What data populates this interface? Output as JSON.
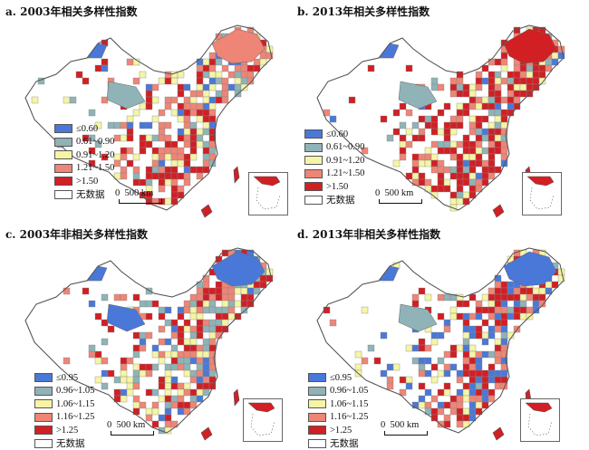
{
  "panels": [
    {
      "title": "a. 2003年相关多样性指数",
      "legend": [
        {
          "label": "≤0.60",
          "color": "#4a78d8"
        },
        {
          "label": "0.61~0.90",
          "color": "#8fb3b7"
        },
        {
          "label": "0.91~1.20",
          "color": "#f5f5a5"
        },
        {
          "label": "1.21~1.50",
          "color": "#ee8576"
        },
        {
          "label": ">1.50",
          "color": "#d11f24"
        },
        {
          "label": "无数据",
          "color": "#ffffff"
        }
      ],
      "scale": {
        "label": "0  500 km"
      }
    },
    {
      "title": "b. 2013年相关多样性指数",
      "legend": [
        {
          "label": "≤0.60",
          "color": "#4a78d8"
        },
        {
          "label": "0.61~0.90",
          "color": "#8fb3b7"
        },
        {
          "label": "0.91~1.20",
          "color": "#f5f5a5"
        },
        {
          "label": "1.21~1.50",
          "color": "#ee8576"
        },
        {
          "label": ">1.50",
          "color": "#d11f24"
        },
        {
          "label": "无数据",
          "color": "#ffffff"
        }
      ],
      "scale": {
        "label": "0  500 km"
      }
    },
    {
      "title": "c. 2003年非相关多样性指数",
      "legend": [
        {
          "label": "≤0.95",
          "color": "#4a78d8"
        },
        {
          "label": "0.96~1.05",
          "color": "#8fb3b7"
        },
        {
          "label": "1.06~1.15",
          "color": "#f5f5a5"
        },
        {
          "label": "1.16~1.25",
          "color": "#ee8576"
        },
        {
          "label": ">1.25",
          "color": "#d11f24"
        },
        {
          "label": "无数据",
          "color": "#ffffff"
        }
      ],
      "scale": {
        "label": "0  500 km"
      }
    },
    {
      "title": "d. 2013年非相关多样性指数",
      "legend": [
        {
          "label": "≤0.95",
          "color": "#4a78d8"
        },
        {
          "label": "0.96~1.05",
          "color": "#8fb3b7"
        },
        {
          "label": "1.06~1.15",
          "color": "#f5f5a5"
        },
        {
          "label": "1.16~1.25",
          "color": "#ee8576"
        },
        {
          "label": ">1.25",
          "color": "#d11f24"
        },
        {
          "label": "无数据",
          "color": "#ffffff"
        }
      ],
      "scale": {
        "label": "0  500 km"
      }
    }
  ]
}
